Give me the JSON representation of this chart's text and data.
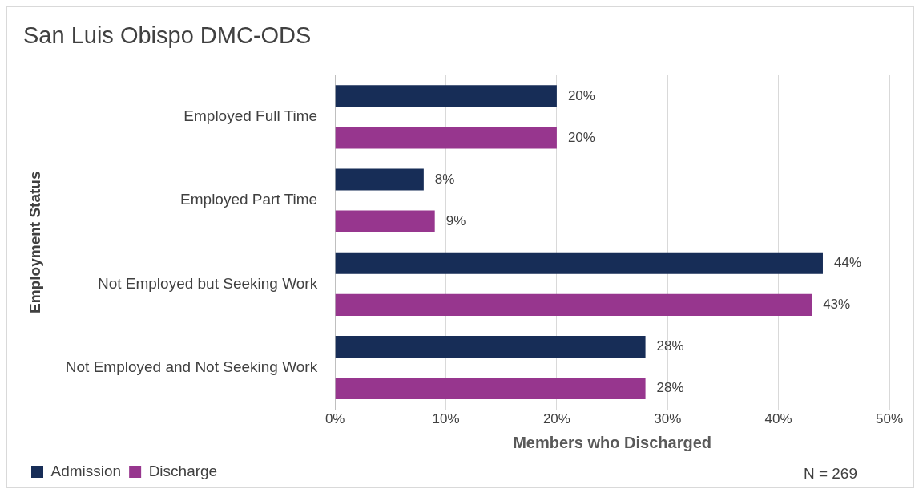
{
  "chart_data": {
    "type": "bar",
    "orientation": "horizontal",
    "title": "San Luis Obispo DMC-ODS",
    "xlabel": "Members who Discharged",
    "ylabel": "Employment Status",
    "categories": [
      "Employed Full Time",
      "Employed Part Time",
      "Not Employed but Seeking Work",
      "Not Employed and Not Seeking Work"
    ],
    "series": [
      {
        "name": "Admission",
        "color": "#172d57",
        "values": [
          20,
          8,
          44,
          28
        ],
        "value_labels": [
          "20%",
          "8%",
          "44%",
          "28%"
        ]
      },
      {
        "name": "Discharge",
        "color": "#97368e",
        "values": [
          20,
          9,
          43,
          28
        ],
        "value_labels": [
          "20%",
          "9%",
          "43%",
          "28%"
        ]
      }
    ],
    "xlim": [
      0,
      50
    ],
    "xticks": [
      {
        "value": 0,
        "label": "0%"
      },
      {
        "value": 10,
        "label": "10%"
      },
      {
        "value": 20,
        "label": "20%"
      },
      {
        "value": 30,
        "label": "30%"
      },
      {
        "value": 40,
        "label": "40%"
      },
      {
        "value": 50,
        "label": "50%"
      }
    ],
    "grid": "x",
    "legend": "bottom left",
    "annotations": [
      "N = 269"
    ]
  }
}
